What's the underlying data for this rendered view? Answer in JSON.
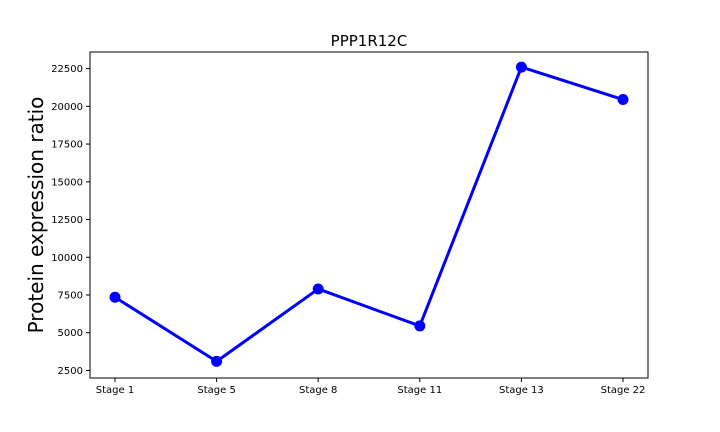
{
  "chart_data": {
    "type": "line",
    "title": "PPP1R12C",
    "xlabel": "",
    "ylabel": "Protein expression ratio",
    "categories": [
      "Stage 1",
      "Stage 5",
      "Stage 8",
      "Stage 11",
      "Stage 13",
      "Stage 22"
    ],
    "series": [
      {
        "values": [
          7350,
          3100,
          7900,
          5450,
          22600,
          20450
        ],
        "color": "#0000ff"
      }
    ],
    "yticks": [
      2500,
      5000,
      7500,
      10000,
      12500,
      15000,
      17500,
      20000,
      22500
    ],
    "ylim": [
      2000,
      23600
    ],
    "grid": false
  }
}
